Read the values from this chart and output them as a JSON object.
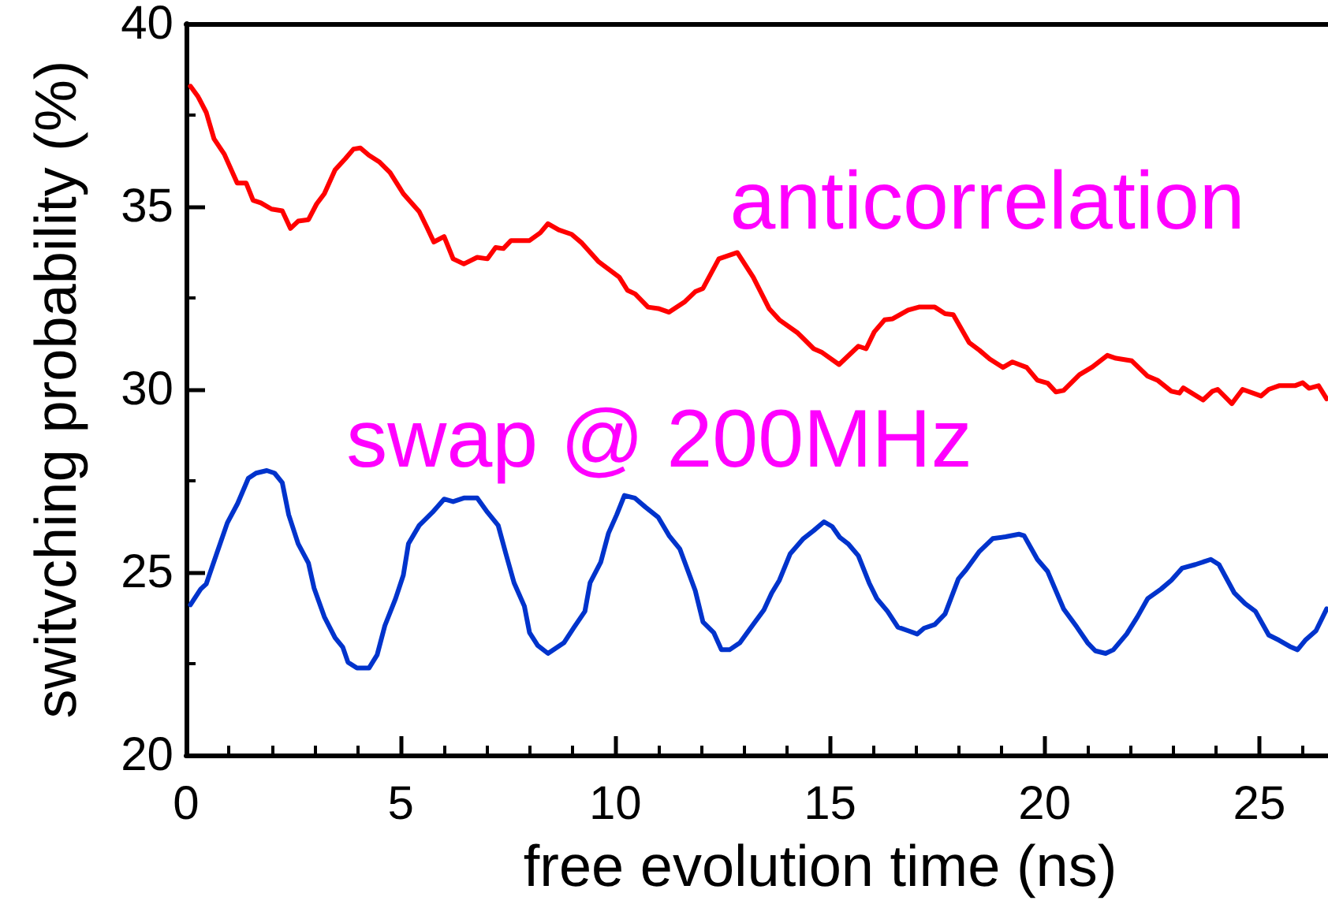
{
  "chart_data": {
    "type": "line",
    "xlabel": "free evolution time (ns)",
    "ylabel": "switvching probability (%)",
    "xlim": [
      0,
      26.6
    ],
    "xticks": [
      0,
      {
        "value": 1,
        "label": null
      },
      {
        "value": 2,
        "label": null
      },
      {
        "value": 3,
        "label": null
      },
      {
        "value": 4,
        "label": null
      },
      5,
      {
        "value": 6,
        "label": null
      },
      {
        "value": 7,
        "label": null
      },
      {
        "value": 8,
        "label": null
      },
      {
        "value": 9,
        "label": null
      },
      10,
      {
        "value": 11,
        "label": null
      },
      {
        "value": 12,
        "label": null
      },
      {
        "value": 13,
        "label": null
      },
      {
        "value": 14,
        "label": null
      },
      15,
      {
        "value": 16,
        "label": null
      },
      {
        "value": 17,
        "label": null
      },
      {
        "value": 18,
        "label": null
      },
      {
        "value": 19,
        "label": null
      },
      20,
      {
        "value": 21,
        "label": null
      },
      {
        "value": 22,
        "label": null
      },
      {
        "value": 23,
        "label": null
      },
      {
        "value": 24,
        "label": null
      },
      25,
      {
        "value": 26,
        "label": null
      }
    ],
    "ylim": [
      20,
      40
    ],
    "yticks": [
      20,
      {
        "value": 22.5,
        "label": null
      },
      25,
      {
        "value": 27.5,
        "label": null
      },
      30,
      {
        "value": 32.5,
        "label": null
      },
      35,
      {
        "value": 37.5,
        "label": null
      },
      40
    ],
    "marker": "none",
    "line_style": "solid",
    "series": [
      {
        "name": "anticorrelation",
        "color": "#ff0000",
        "x": [
          0.1,
          0.28,
          0.47,
          0.65,
          0.89,
          1.19,
          1.4,
          1.56,
          1.74,
          1.99,
          2.24,
          2.43,
          2.61,
          2.85,
          3.04,
          3.22,
          3.47,
          3.71,
          3.9,
          4.06,
          4.26,
          4.51,
          4.75,
          5.06,
          5.43,
          5.61,
          5.77,
          6.01,
          6.22,
          6.47,
          6.78,
          7.02,
          7.21,
          7.39,
          7.57,
          8.0,
          8.25,
          8.43,
          8.68,
          8.98,
          9.22,
          9.6,
          10.09,
          10.28,
          10.46,
          10.76,
          11.0,
          11.25,
          11.62,
          11.86,
          12.04,
          12.41,
          12.84,
          13.21,
          13.58,
          13.82,
          14.25,
          14.62,
          14.8,
          15.21,
          15.66,
          15.84,
          16.03,
          16.27,
          16.46,
          16.82,
          17.07,
          17.44,
          17.68,
          17.87,
          18.24,
          18.48,
          18.72,
          19.03,
          19.25,
          19.58,
          19.83,
          20.07,
          20.26,
          20.44,
          20.81,
          21.11,
          21.46,
          21.66,
          22.03,
          22.4,
          22.64,
          22.95,
          23.14,
          23.23,
          23.69,
          23.91,
          24.03,
          24.36,
          24.61,
          25.04,
          25.22,
          25.46,
          25.83,
          26.01,
          26.16,
          26.38,
          26.57
        ],
        "values": [
          38.29,
          38.0,
          37.57,
          36.85,
          36.43,
          35.64,
          35.64,
          35.17,
          35.1,
          34.93,
          34.88,
          34.4,
          34.6,
          34.64,
          35.07,
          35.35,
          36.0,
          36.31,
          36.57,
          36.6,
          36.4,
          36.21,
          35.93,
          35.35,
          34.86,
          34.43,
          34.03,
          34.18,
          33.57,
          33.43,
          33.61,
          33.57,
          33.88,
          33.85,
          34.07,
          34.07,
          34.28,
          34.53,
          34.36,
          34.24,
          34.0,
          33.5,
          33.07,
          32.71,
          32.61,
          32.25,
          32.21,
          32.11,
          32.4,
          32.67,
          32.76,
          33.57,
          33.74,
          33.07,
          32.21,
          31.9,
          31.54,
          31.11,
          31.02,
          30.68,
          31.18,
          31.11,
          31.57,
          31.9,
          31.93,
          32.17,
          32.25,
          32.25,
          32.07,
          32.04,
          31.28,
          31.07,
          30.83,
          30.6,
          30.75,
          30.6,
          30.25,
          30.17,
          29.93,
          29.97,
          30.4,
          30.61,
          30.93,
          30.85,
          30.78,
          30.36,
          30.24,
          29.95,
          29.9,
          30.04,
          29.71,
          29.95,
          30.0,
          29.61,
          30.0,
          29.82,
          30.0,
          30.1,
          30.1,
          30.18,
          30.03,
          30.1,
          29.74
        ]
      },
      {
        "name": "swap @ 200MHz",
        "color": "#0033cc",
        "x": [
          0.1,
          0.34,
          0.47,
          0.71,
          0.96,
          1.2,
          1.45,
          1.63,
          1.88,
          2.06,
          2.24,
          2.39,
          2.61,
          2.85,
          2.98,
          3.22,
          3.47,
          3.65,
          3.77,
          3.98,
          4.26,
          4.45,
          4.63,
          4.88,
          5.06,
          5.18,
          5.43,
          5.74,
          6.01,
          6.22,
          6.47,
          6.78,
          7.02,
          7.27,
          7.45,
          7.64,
          7.88,
          8.0,
          8.19,
          8.43,
          8.8,
          9.04,
          9.29,
          9.41,
          9.66,
          9.84,
          10.03,
          10.21,
          10.45,
          10.7,
          11.0,
          11.25,
          11.5,
          11.68,
          11.86,
          12.04,
          12.29,
          12.47,
          12.66,
          12.9,
          13.21,
          13.46,
          13.64,
          13.82,
          14.07,
          14.38,
          14.62,
          14.86,
          15.05,
          15.23,
          15.42,
          15.66,
          15.91,
          16.09,
          16.34,
          16.58,
          16.82,
          17.03,
          17.19,
          17.44,
          17.68,
          17.99,
          18.17,
          18.48,
          18.79,
          19.09,
          19.4,
          19.52,
          19.83,
          20.07,
          20.44,
          20.75,
          21.0,
          21.18,
          21.42,
          21.6,
          21.91,
          22.16,
          22.4,
          22.71,
          22.95,
          23.2,
          23.51,
          23.87,
          24.06,
          24.42,
          24.67,
          24.91,
          25.22,
          25.46,
          25.71,
          25.89,
          26.07,
          26.32,
          26.57
        ],
        "values": [
          24.11,
          24.54,
          24.68,
          25.5,
          26.35,
          26.88,
          27.57,
          27.71,
          27.78,
          27.71,
          27.45,
          26.57,
          25.78,
          25.25,
          24.57,
          23.78,
          23.21,
          22.95,
          22.54,
          22.38,
          22.38,
          22.74,
          23.54,
          24.28,
          24.92,
          25.78,
          26.28,
          26.64,
          27.0,
          26.93,
          27.03,
          27.03,
          26.64,
          26.28,
          25.5,
          24.71,
          24.07,
          23.35,
          23.0,
          22.78,
          23.07,
          23.5,
          23.93,
          24.71,
          25.28,
          26.07,
          26.57,
          27.1,
          27.03,
          26.78,
          26.5,
          26.0,
          25.64,
          25.07,
          24.5,
          23.64,
          23.35,
          22.88,
          22.88,
          23.07,
          23.57,
          23.97,
          24.43,
          24.78,
          25.5,
          25.92,
          26.14,
          26.38,
          26.25,
          25.95,
          25.78,
          25.45,
          24.71,
          24.28,
          23.93,
          23.5,
          23.4,
          23.31,
          23.47,
          23.57,
          23.86,
          24.82,
          25.07,
          25.57,
          25.92,
          25.97,
          26.04,
          26.0,
          25.35,
          25.02,
          24.0,
          23.5,
          23.07,
          22.85,
          22.78,
          22.88,
          23.31,
          23.78,
          24.28,
          24.54,
          24.78,
          25.11,
          25.21,
          25.35,
          25.21,
          24.43,
          24.14,
          23.93,
          23.28,
          23.14,
          22.97,
          22.88,
          23.14,
          23.4,
          24.0
        ]
      }
    ]
  }
}
